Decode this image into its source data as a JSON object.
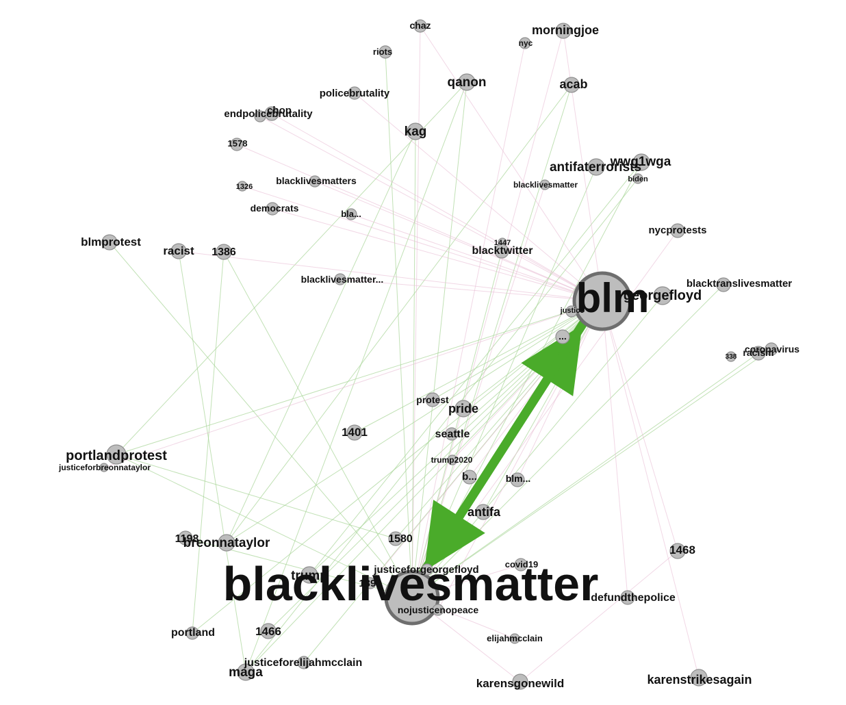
{
  "colors": {
    "positive_edge": "#a7d496",
    "negative_edge": "#e7bcd4",
    "strong_edge": "#4aab2a",
    "node_fill": "#bdbdbd"
  },
  "nodes": [
    {
      "id": "blacklivesmatter",
      "label": "blacklivesmatter"
    },
    {
      "id": "blm",
      "label": "blm"
    },
    {
      "id": "georgefloyd",
      "label": "georgefloyd"
    },
    {
      "id": "blacktranslivesmatter",
      "label": "blacktranslivesmatter"
    },
    {
      "id": "justice",
      "label": "justice"
    },
    {
      "id": "ellipsis",
      "label": "..."
    },
    {
      "id": "coronavirus",
      "label": "coronavirus"
    },
    {
      "id": "racism",
      "label": "racism"
    },
    {
      "id": "n338",
      "label": "338"
    },
    {
      "id": "chaz",
      "label": "chaz"
    },
    {
      "id": "riots",
      "label": "riots"
    },
    {
      "id": "morningjoe",
      "label": "morningjoe"
    },
    {
      "id": "nyc",
      "label": "nyc"
    },
    {
      "id": "qanon",
      "label": "qanon"
    },
    {
      "id": "acab",
      "label": "acab"
    },
    {
      "id": "policebrutality",
      "label": "policebrutality"
    },
    {
      "id": "endpolicebrutality",
      "label": "endpolicebrutality"
    },
    {
      "id": "chop",
      "label": "chop"
    },
    {
      "id": "n1578",
      "label": "1578"
    },
    {
      "id": "kag",
      "label": "kag"
    },
    {
      "id": "antifaterrorists",
      "label": "antifaterrorists"
    },
    {
      "id": "wwg1wga",
      "label": "wwg1wga"
    },
    {
      "id": "biden",
      "label": "biden"
    },
    {
      "id": "blacklivesmatter2",
      "label": "blacklivesmatter"
    },
    {
      "id": "n1326",
      "label": "1326"
    },
    {
      "id": "blacklivesmatters",
      "label": "blacklivesmatters"
    },
    {
      "id": "democrats",
      "label": "democrats"
    },
    {
      "id": "bla",
      "label": "bla..."
    },
    {
      "id": "nycprotests",
      "label": "nycprotests"
    },
    {
      "id": "blmprotest",
      "label": "blmprotest"
    },
    {
      "id": "racist",
      "label": "racist"
    },
    {
      "id": "n1386",
      "label": "1386"
    },
    {
      "id": "n1447",
      "label": "1447"
    },
    {
      "id": "blacktwitter",
      "label": "blacktwitter"
    },
    {
      "id": "blacklivesmatter3",
      "label": "blacklivesmatter..."
    },
    {
      "id": "protest",
      "label": "protest"
    },
    {
      "id": "pride",
      "label": "pride"
    },
    {
      "id": "n1401",
      "label": "1401"
    },
    {
      "id": "seattle",
      "label": "seattle"
    },
    {
      "id": "trump2020",
      "label": "trump2020"
    },
    {
      "id": "portlandprotest",
      "label": "portlandprotest"
    },
    {
      "id": "justiceforbreonnataylor",
      "label": "justiceforbreonnataylor"
    },
    {
      "id": "b",
      "label": "b..."
    },
    {
      "id": "blm2",
      "label": "blm..."
    },
    {
      "id": "antifa",
      "label": "antifa"
    },
    {
      "id": "n1198",
      "label": "1198"
    },
    {
      "id": "breonnataylor",
      "label": "breonnataylor"
    },
    {
      "id": "n1580",
      "label": "1580"
    },
    {
      "id": "n1468",
      "label": "1468"
    },
    {
      "id": "trump",
      "label": "trump"
    },
    {
      "id": "n1399",
      "label": "1399"
    },
    {
      "id": "justiceforgeorgefloyd",
      "label": "justiceforgeorgefloyd"
    },
    {
      "id": "covid19",
      "label": "covid19"
    },
    {
      "id": "nojusticenopeace",
      "label": "nojusticenopeace"
    },
    {
      "id": "defundthepolice",
      "label": "defundthepolice"
    },
    {
      "id": "portland",
      "label": "portland"
    },
    {
      "id": "n1466",
      "label": "1466"
    },
    {
      "id": "elijahmcclain",
      "label": "elijahmcclain"
    },
    {
      "id": "justiceforelijahmcclain",
      "label": "justiceforelijahmcclain"
    },
    {
      "id": "maga",
      "label": "maga"
    },
    {
      "id": "karensgonewild",
      "label": "karensgonewild"
    },
    {
      "id": "karenstrikesagain",
      "label": "karenstrikesagain"
    }
  ],
  "edges": [
    {
      "from": "blacklivesmatter",
      "to": "blm",
      "kind": "strong"
    },
    {
      "from": "blm",
      "to": "blacklivesmatter",
      "kind": "strong"
    },
    {
      "from": "qanon",
      "to": "blacklivesmatter",
      "kind": "positive"
    },
    {
      "from": "kag",
      "to": "blacklivesmatter",
      "kind": "positive"
    },
    {
      "from": "acab",
      "to": "blacklivesmatter",
      "kind": "positive"
    },
    {
      "from": "riots",
      "to": "blacklivesmatter",
      "kind": "positive"
    },
    {
      "from": "wwg1wga",
      "to": "blacklivesmatter",
      "kind": "positive"
    },
    {
      "from": "antifaterrorists",
      "to": "blacklivesmatter",
      "kind": "positive"
    },
    {
      "from": "portlandprotest",
      "to": "blm",
      "kind": "positive"
    },
    {
      "from": "portlandprotest",
      "to": "blacklivesmatter",
      "kind": "positive"
    },
    {
      "from": "n1386",
      "to": "blacklivesmatter",
      "kind": "positive"
    },
    {
      "from": "n1386",
      "to": "portland",
      "kind": "positive"
    },
    {
      "from": "blmprotest",
      "to": "blacklivesmatter",
      "kind": "positive"
    },
    {
      "from": "breonnataylor",
      "to": "blm",
      "kind": "positive"
    },
    {
      "from": "trump",
      "to": "blm",
      "kind": "positive"
    },
    {
      "from": "maga",
      "to": "blm",
      "kind": "positive"
    },
    {
      "from": "maga",
      "to": "qanon",
      "kind": "positive"
    },
    {
      "from": "justiceforelijahmcclain",
      "to": "blm",
      "kind": "positive"
    },
    {
      "from": "n1466",
      "to": "blm",
      "kind": "positive"
    },
    {
      "from": "racism",
      "to": "blacklivesmatter",
      "kind": "positive"
    },
    {
      "from": "coronavirus",
      "to": "blacklivesmatter",
      "kind": "positive"
    },
    {
      "from": "blacktranslivesmatter",
      "to": "blacklivesmatter",
      "kind": "positive"
    },
    {
      "from": "georgefloyd",
      "to": "blacklivesmatter",
      "kind": "positive"
    },
    {
      "from": "blacktwitter",
      "to": "blacklivesmatter",
      "kind": "positive"
    },
    {
      "from": "protest",
      "to": "blm",
      "kind": "positive"
    },
    {
      "from": "pride",
      "to": "blm",
      "kind": "positive"
    },
    {
      "from": "n1401",
      "to": "blm",
      "kind": "positive"
    },
    {
      "from": "seattle",
      "to": "blm",
      "kind": "positive"
    },
    {
      "from": "antifa",
      "to": "blm",
      "kind": "positive"
    },
    {
      "from": "n1580",
      "to": "blm",
      "kind": "positive"
    },
    {
      "from": "n1198",
      "to": "blacklivesmatter",
      "kind": "positive"
    },
    {
      "from": "portland",
      "to": "blm",
      "kind": "positive"
    },
    {
      "from": "portlandprotest",
      "to": "n1580",
      "kind": "positive"
    },
    {
      "from": "racist",
      "to": "maga",
      "kind": "positive"
    },
    {
      "from": "qanon",
      "to": "portlandprotest",
      "kind": "positive"
    },
    {
      "from": "kag",
      "to": "breonnataylor",
      "kind": "positive"
    },
    {
      "from": "biden",
      "to": "maga",
      "kind": "positive"
    },
    {
      "from": "wwg1wga",
      "to": "trump",
      "kind": "positive"
    },
    {
      "from": "acab",
      "to": "breonnataylor",
      "kind": "positive"
    },
    {
      "from": "karenstrikesagain",
      "to": "blm",
      "kind": "negative"
    },
    {
      "from": "karensgonewild",
      "to": "blacklivesmatter",
      "kind": "negative"
    },
    {
      "from": "karensgonewild",
      "to": "n1468",
      "kind": "negative"
    },
    {
      "from": "n1468",
      "to": "blm",
      "kind": "negative"
    },
    {
      "from": "defundthepolice",
      "to": "blm",
      "kind": "negative"
    },
    {
      "from": "elijahmcclain",
      "to": "blacklivesmatter",
      "kind": "negative"
    },
    {
      "from": "morningjoe",
      "to": "blacklivesmatter",
      "kind": "negative"
    },
    {
      "from": "nyc",
      "to": "blacklivesmatter",
      "kind": "negative"
    },
    {
      "from": "chaz",
      "to": "blm",
      "kind": "negative"
    },
    {
      "from": "policebrutality",
      "to": "blm",
      "kind": "negative"
    },
    {
      "from": "endpolicebrutality",
      "to": "blm",
      "kind": "negative"
    },
    {
      "from": "chop",
      "to": "blm",
      "kind": "negative"
    },
    {
      "from": "n1578",
      "to": "blm",
      "kind": "negative"
    },
    {
      "from": "n1326",
      "to": "blm",
      "kind": "negative"
    },
    {
      "from": "blacklivesmatters",
      "to": "blm",
      "kind": "negative"
    },
    {
      "from": "democrats",
      "to": "blm",
      "kind": "negative"
    },
    {
      "from": "bla",
      "to": "blm",
      "kind": "negative"
    },
    {
      "from": "nycprotests",
      "to": "blacklivesmatter",
      "kind": "negative"
    },
    {
      "from": "racist",
      "to": "blm",
      "kind": "negative"
    },
    {
      "from": "blacklivesmatter3",
      "to": "blm",
      "kind": "negative"
    },
    {
      "from": "n1447",
      "to": "blm",
      "kind": "negative"
    },
    {
      "from": "trump2020",
      "to": "blm",
      "kind": "negative"
    },
    {
      "from": "b",
      "to": "blm",
      "kind": "negative"
    },
    {
      "from": "blm2",
      "to": "blm",
      "kind": "negative"
    },
    {
      "from": "covid19",
      "to": "blacklivesmatter",
      "kind": "negative"
    },
    {
      "from": "justiceforbreonnataylor",
      "to": "blm",
      "kind": "negative"
    },
    {
      "from": "morningjoe",
      "to": "blm",
      "kind": "negative"
    },
    {
      "from": "chaz",
      "to": "blacklivesmatter",
      "kind": "negative"
    },
    {
      "from": "n1399",
      "to": "blm",
      "kind": "negative"
    },
    {
      "from": "blacklivesmatter2",
      "to": "blacklivesmatter",
      "kind": "negative"
    },
    {
      "from": "justiceforgeorgefloyd",
      "to": "blm",
      "kind": "negative"
    },
    {
      "from": "nojusticenopeace",
      "to": "blm",
      "kind": "negative"
    }
  ]
}
